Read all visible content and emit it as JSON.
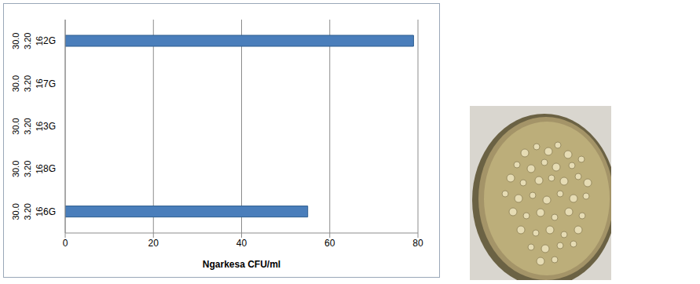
{
  "chart_data": {
    "type": "bar",
    "orientation": "horizontal",
    "categories": [
      "2G",
      "7G",
      "3G",
      "8G",
      "6G"
    ],
    "category_levels": [
      [
        "30.0",
        "3.20",
        "16"
      ],
      [
        "30.0",
        "3.20",
        "16"
      ],
      [
        "30.0",
        "3.20",
        "16"
      ],
      [
        "30.0",
        "3.20",
        "16"
      ],
      [
        "30.0",
        "3.20",
        "16"
      ]
    ],
    "values": [
      79,
      0,
      0,
      0,
      55
    ],
    "color": "#4a7ebb",
    "x_label": "Ngarkesa CFU/ml",
    "xlim": [
      0,
      80
    ],
    "xticks": [
      0,
      20,
      40,
      60,
      80
    ],
    "grid": true
  }
}
